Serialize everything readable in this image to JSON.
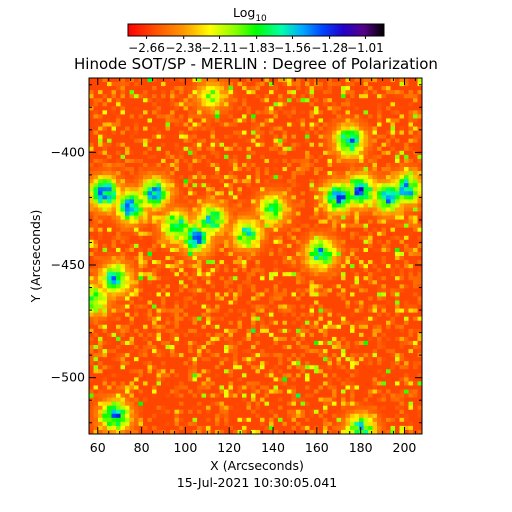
{
  "chart_data": {
    "type": "heatmap",
    "title": "Hinode SOT/SP - MERLIN : Degree of Polarization",
    "xlabel": "X (Arcseconds)",
    "ylabel": "Y (Arcseconds)",
    "date": "15-Jul-2021 10:30:05.041",
    "xlim": [
      56,
      208
    ],
    "ylim": [
      -525,
      -367
    ],
    "xticks": [
      60,
      80,
      100,
      120,
      140,
      160,
      180,
      200
    ],
    "yticks": [
      -400,
      -450,
      -500
    ],
    "colorbar": {
      "label": "Log",
      "label_subscript": "10",
      "range": [
        -2.8,
        -0.87
      ],
      "tick_values": [
        -2.66,
        -2.38,
        -2.11,
        -1.83,
        -1.56,
        -1.28,
        -1.01
      ],
      "tick_labels": [
        "−2.66",
        "−2.38",
        "−2.11",
        "−1.83",
        "−1.56",
        "−1.28",
        "−1.01"
      ],
      "colormap": "rainbow"
    },
    "background_level": -2.62,
    "features": [
      {
        "x": 63,
        "y": -418,
        "level": -1.15
      },
      {
        "x": 75,
        "y": -424,
        "level": -1.2
      },
      {
        "x": 86,
        "y": -418,
        "level": -1.35
      },
      {
        "x": 96,
        "y": -433,
        "level": -1.4
      },
      {
        "x": 105,
        "y": -438,
        "level": -1.3
      },
      {
        "x": 112,
        "y": -430,
        "level": -1.45
      },
      {
        "x": 128,
        "y": -436,
        "level": -1.55
      },
      {
        "x": 140,
        "y": -425,
        "level": -1.7
      },
      {
        "x": 162,
        "y": -445,
        "level": -1.4
      },
      {
        "x": 170,
        "y": -420,
        "level": -1.25
      },
      {
        "x": 180,
        "y": -417,
        "level": -1.2
      },
      {
        "x": 193,
        "y": -420,
        "level": -1.25
      },
      {
        "x": 201,
        "y": -416,
        "level": -1.3
      },
      {
        "x": 175,
        "y": -395,
        "level": -1.35
      },
      {
        "x": 68,
        "y": -456,
        "level": -1.4
      },
      {
        "x": 58,
        "y": -465,
        "level": -1.6
      },
      {
        "x": 68,
        "y": -517,
        "level": -1.3
      },
      {
        "x": 180,
        "y": -523,
        "level": -1.45
      },
      {
        "x": 112,
        "y": -375,
        "level": -1.9
      }
    ]
  }
}
